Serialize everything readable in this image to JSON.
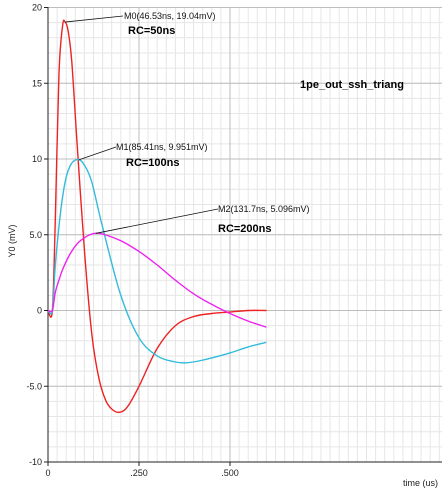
{
  "chart_data": {
    "type": "line",
    "ylabel": "Y0 (mV)",
    "xlabel": "time (us)",
    "xlim": [
      0,
      0.6
    ],
    "ylim": [
      -10,
      20
    ],
    "x_ticks": [
      {
        "value": 0,
        "label": "0"
      },
      {
        "value": 0.25,
        "label": ".250"
      },
      {
        "value": 0.5,
        "label": ".500"
      }
    ],
    "y_ticks": [
      {
        "value": -10,
        "label": "-10"
      },
      {
        "value": -5,
        "label": "-5.0"
      },
      {
        "value": 0,
        "label": "0"
      },
      {
        "value": 5,
        "label": "5.0"
      },
      {
        "value": 10,
        "label": "10"
      },
      {
        "value": 15,
        "label": "15"
      },
      {
        "value": 20,
        "label": "20"
      }
    ],
    "grid": true,
    "minor_grid": true,
    "annotation": "1pe_out_ssh_triang",
    "series": [
      {
        "name": "RC=50ns",
        "color": "#ee2222",
        "x": [
          0,
          0.012,
          0.02,
          0.03,
          0.04,
          0.047,
          0.055,
          0.065,
          0.08,
          0.1,
          0.12,
          0.14,
          0.16,
          0.18,
          0.2,
          0.22,
          0.25,
          0.3,
          0.35,
          0.4,
          0.45,
          0.5,
          0.55,
          0.6
        ],
        "y": [
          0,
          0,
          6,
          15.5,
          18.8,
          19.04,
          18.5,
          16.5,
          11,
          4,
          -1.5,
          -4.5,
          -6.0,
          -6.6,
          -6.7,
          -6.3,
          -5.0,
          -2.5,
          -1.0,
          -0.4,
          -0.2,
          -0.1,
          0.0,
          0.0
        ]
      },
      {
        "name": "RC=100ns",
        "color": "#33bbdd",
        "x": [
          0,
          0.012,
          0.02,
          0.03,
          0.04,
          0.05,
          0.06,
          0.07,
          0.0854,
          0.1,
          0.12,
          0.15,
          0.2,
          0.25,
          0.3,
          0.35,
          0.38,
          0.42,
          0.5,
          0.55,
          0.6
        ],
        "y": [
          0,
          0,
          3,
          5.5,
          7.5,
          8.8,
          9.5,
          9.85,
          9.951,
          9.6,
          8.5,
          5.5,
          1.0,
          -1.8,
          -3.0,
          -3.4,
          -3.45,
          -3.3,
          -2.8,
          -2.4,
          -2.1
        ]
      },
      {
        "name": "RC=200ns",
        "color": "#ee22ee",
        "x": [
          0,
          0.012,
          0.02,
          0.03,
          0.04,
          0.06,
          0.08,
          0.1,
          0.12,
          0.1317,
          0.15,
          0.2,
          0.25,
          0.3,
          0.35,
          0.4,
          0.45,
          0.5,
          0.55,
          0.6
        ],
        "y": [
          0,
          0,
          1.2,
          2.0,
          2.7,
          3.7,
          4.4,
          4.8,
          5.05,
          5.096,
          5.05,
          4.6,
          3.9,
          3.0,
          2.0,
          1.1,
          0.4,
          -0.2,
          -0.7,
          -1.1
        ]
      }
    ],
    "markers": [
      {
        "label": "M0(46.53ns, 19.04mV)",
        "rc_label": "RC=50ns",
        "x": 0.04653,
        "y": 19.04
      },
      {
        "label": "M1(85.41ns, 9.951mV)",
        "rc_label": "RC=100ns",
        "x": 0.08541,
        "y": 9.951
      },
      {
        "label": "M2(131.7ns, 5.096mV)",
        "rc_label": "RC=200ns",
        "x": 0.1317,
        "y": 5.096
      }
    ]
  }
}
